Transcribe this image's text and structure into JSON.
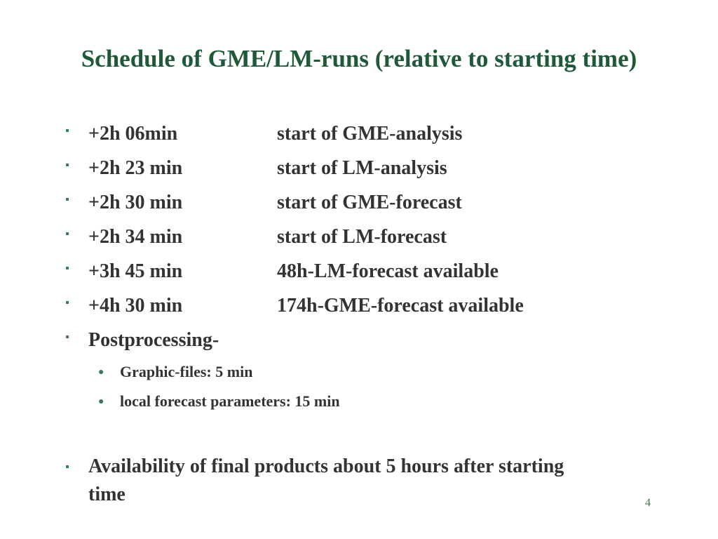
{
  "slide": {
    "title": "Schedule of GME/LM-runs (relative to starting time)",
    "bullet_marker": "▪",
    "sub_bullet_marker": "●",
    "schedule": [
      {
        "time": "+2h 06min",
        "event": "start of GME-analysis"
      },
      {
        "time": "+2h 23 min",
        "event": "start of LM-analysis"
      },
      {
        "time": "+2h 30 min",
        "event": "start of GME-forecast"
      },
      {
        "time": "+2h 34 min",
        "event": "start of LM-forecast"
      },
      {
        "time": "+3h 45 min",
        "event": "48h-LM-forecast available"
      },
      {
        "time": "+4h 30 min",
        "event": "174h-GME-forecast available"
      }
    ],
    "postprocessing": {
      "label": "Postprocessing-",
      "items": [
        "Graphic-files: 5 min",
        "local forecast parameters: 15 min"
      ]
    },
    "final_note": "Availability of final products about 5 hours after starting time",
    "page_number": "4"
  },
  "colors": {
    "title": "#1e5a37",
    "body_text": "#333333",
    "bullet": "#3a7a55",
    "background": "#ffffff"
  }
}
